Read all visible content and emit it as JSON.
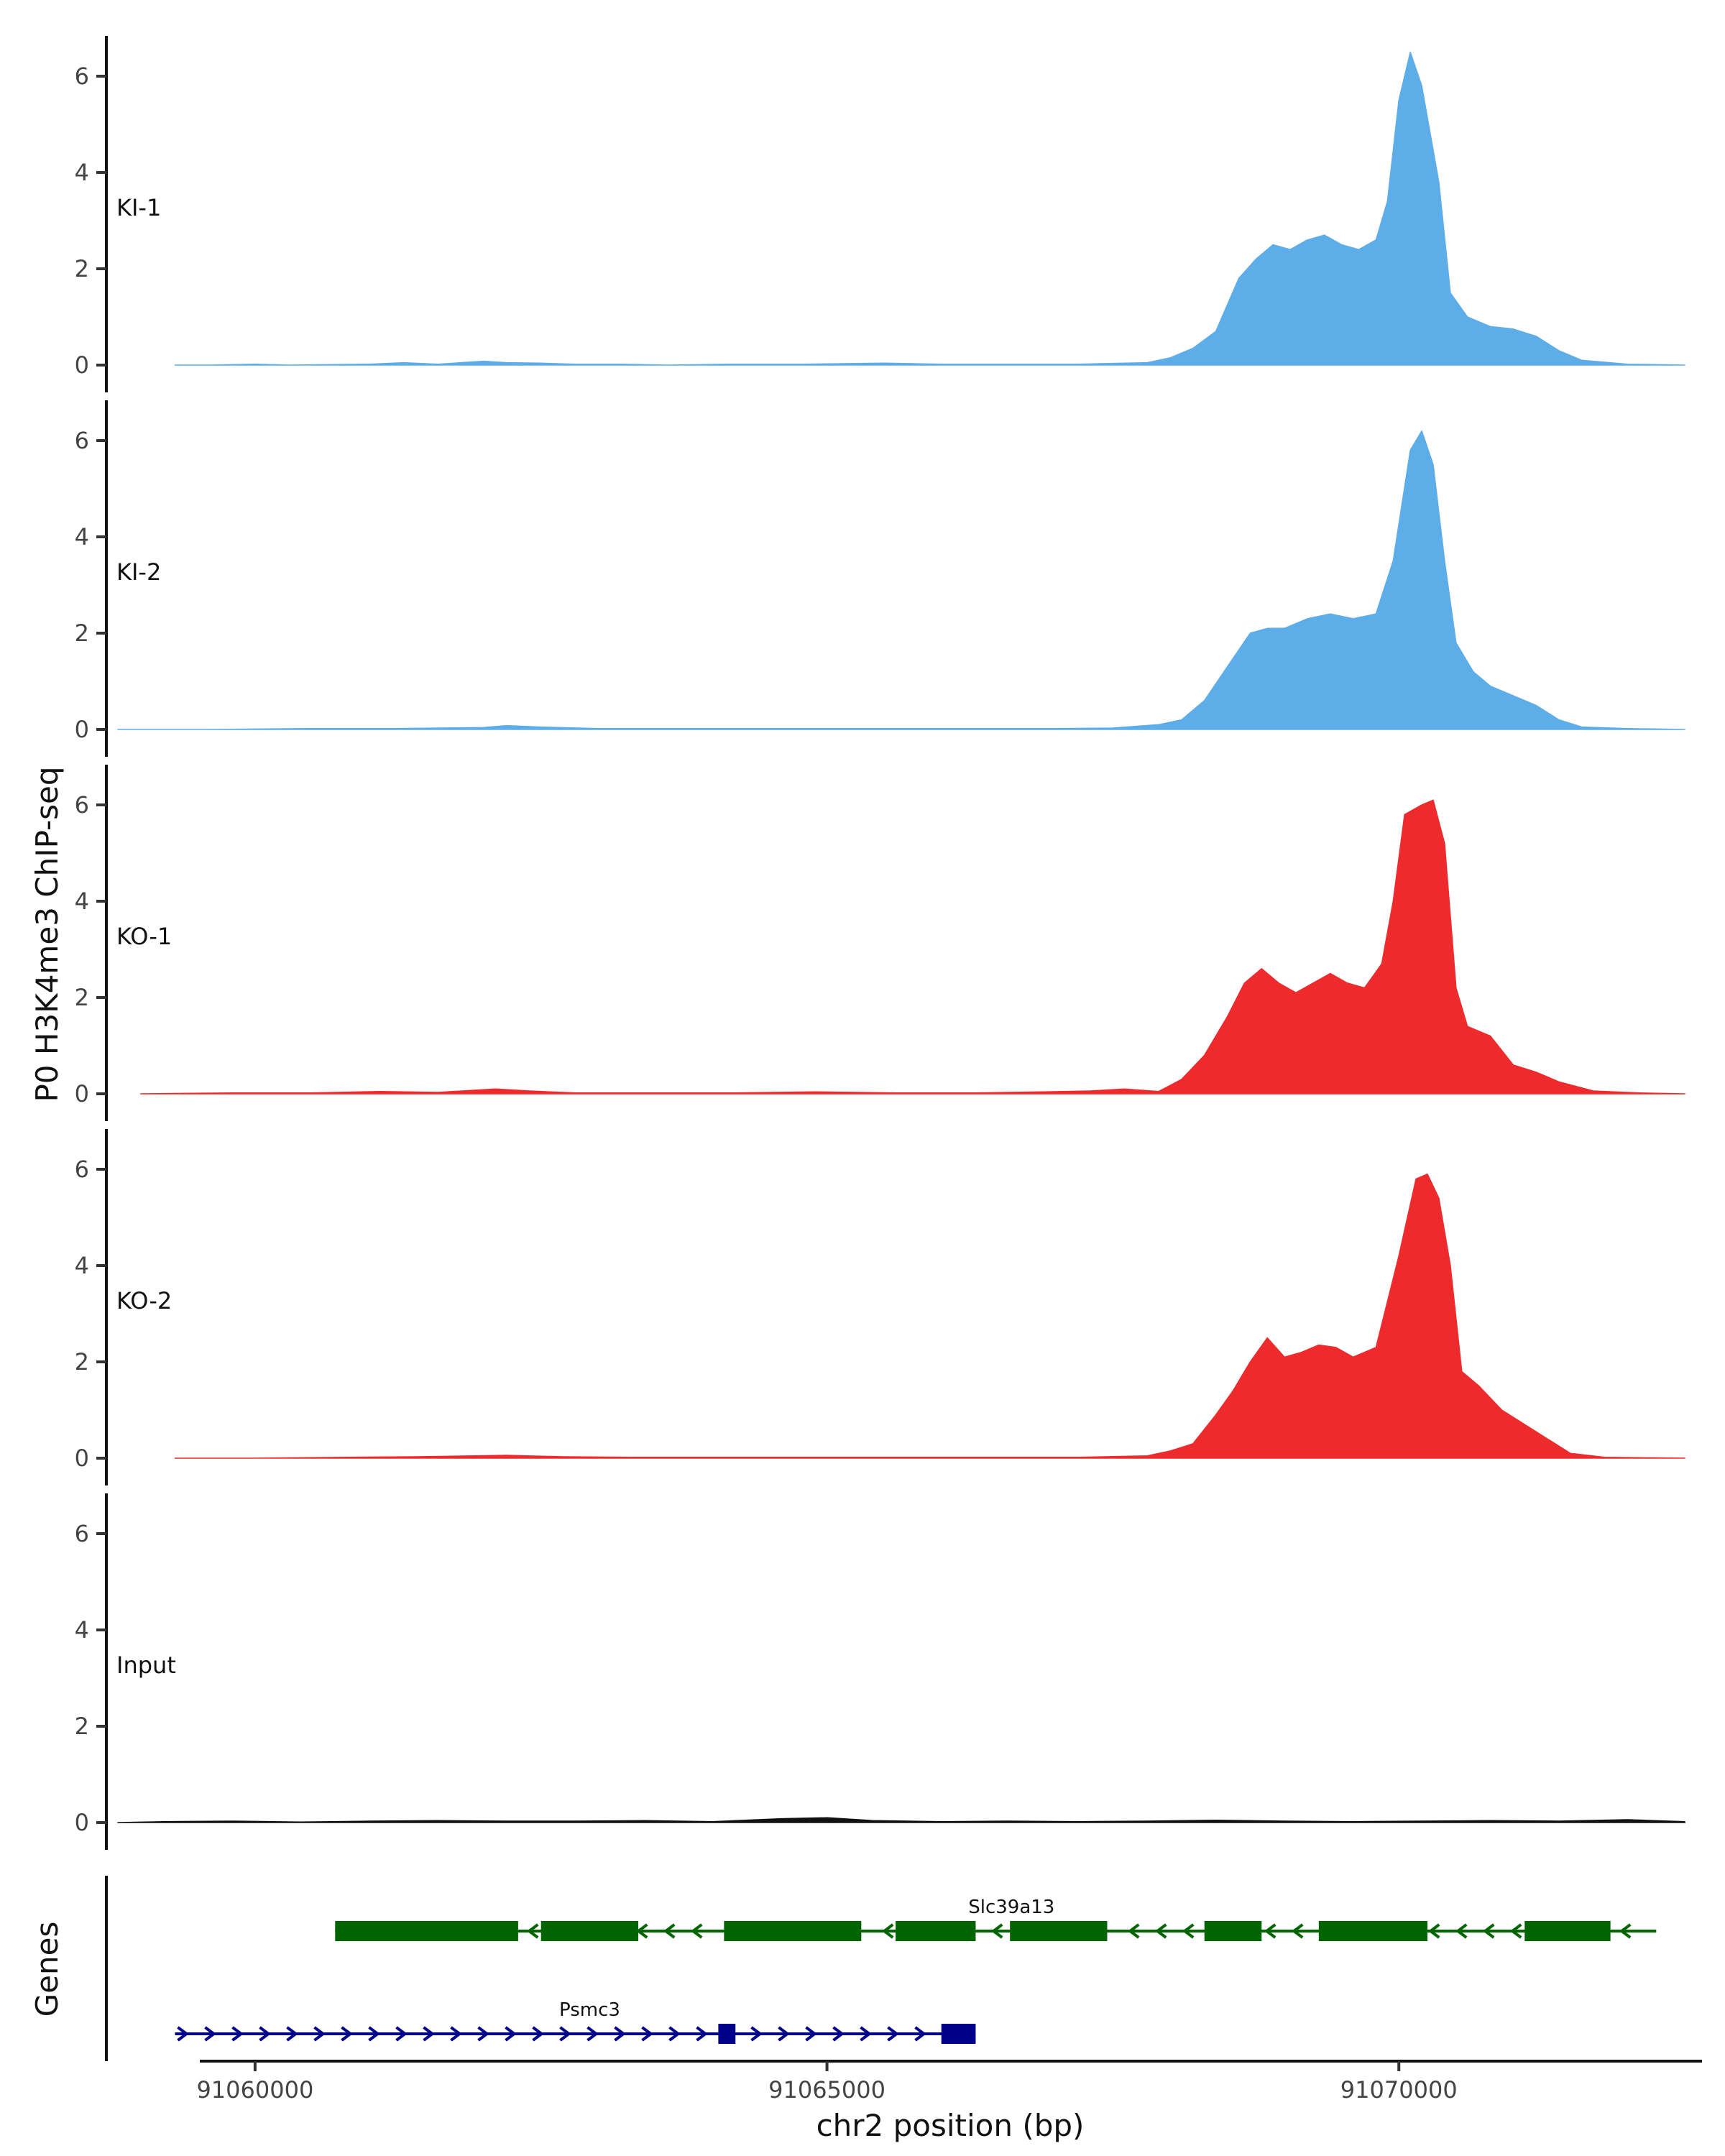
{
  "chart_data": {
    "type": "area",
    "ylabel": "P0 H3K4me3 ChIP-seq",
    "xlabel": "chr2 position (bp)",
    "genes_label": "Genes",
    "xlim": [
      91058700,
      91072600
    ],
    "ylim": [
      0,
      6.8
    ],
    "y_ticks": [
      0,
      2,
      4,
      6
    ],
    "x_ticks": [
      91060000,
      91065000,
      91070000
    ],
    "x_tick_labels": [
      "91060000",
      "91065000",
      "91070000"
    ],
    "tracks": [
      {
        "label": "KI-1",
        "color": "#5dade9",
        "points": [
          [
            91059300,
            0
          ],
          [
            91059600,
            0
          ],
          [
            91060000,
            0.02
          ],
          [
            91060300,
            0
          ],
          [
            91061000,
            0.02
          ],
          [
            91061300,
            0.05
          ],
          [
            91061600,
            0.02
          ],
          [
            91062000,
            0.08
          ],
          [
            91062200,
            0.05
          ],
          [
            91062500,
            0.04
          ],
          [
            91062800,
            0.02
          ],
          [
            91063200,
            0.02
          ],
          [
            91063600,
            0
          ],
          [
            91064200,
            0.02
          ],
          [
            91064800,
            0.02
          ],
          [
            91065500,
            0.04
          ],
          [
            91066000,
            0.02
          ],
          [
            91066600,
            0.02
          ],
          [
            91067200,
            0.02
          ],
          [
            91067800,
            0.05
          ],
          [
            91068000,
            0.15
          ],
          [
            91068200,
            0.35
          ],
          [
            91068400,
            0.7
          ],
          [
            91068600,
            1.8
          ],
          [
            91068750,
            2.2
          ],
          [
            91068900,
            2.5
          ],
          [
            91069050,
            2.4
          ],
          [
            91069200,
            2.6
          ],
          [
            91069350,
            2.7
          ],
          [
            91069500,
            2.5
          ],
          [
            91069650,
            2.4
          ],
          [
            91069800,
            2.6
          ],
          [
            91069900,
            3.4
          ],
          [
            91070000,
            5.5
          ],
          [
            91070100,
            6.5
          ],
          [
            91070200,
            5.8
          ],
          [
            91070350,
            3.8
          ],
          [
            91070450,
            1.5
          ],
          [
            91070600,
            1.0
          ],
          [
            91070800,
            0.8
          ],
          [
            91071000,
            0.75
          ],
          [
            91071200,
            0.6
          ],
          [
            91071400,
            0.3
          ],
          [
            91071600,
            0.1
          ],
          [
            91072000,
            0.02
          ],
          [
            91072500,
            0
          ]
        ]
      },
      {
        "label": "KI-2",
        "color": "#5dade9",
        "points": [
          [
            91058800,
            0
          ],
          [
            91059600,
            0
          ],
          [
            91060500,
            0.02
          ],
          [
            91061200,
            0.02
          ],
          [
            91062000,
            0.04
          ],
          [
            91062200,
            0.08
          ],
          [
            91062500,
            0.05
          ],
          [
            91063000,
            0.02
          ],
          [
            91063800,
            0.02
          ],
          [
            91064600,
            0.02
          ],
          [
            91065400,
            0.02
          ],
          [
            91066200,
            0.02
          ],
          [
            91067000,
            0.02
          ],
          [
            91067500,
            0.03
          ],
          [
            91067900,
            0.1
          ],
          [
            91068100,
            0.2
          ],
          [
            91068300,
            0.6
          ],
          [
            91068500,
            1.3
          ],
          [
            91068700,
            2.0
          ],
          [
            91068850,
            2.1
          ],
          [
            91069000,
            2.1
          ],
          [
            91069200,
            2.3
          ],
          [
            91069400,
            2.4
          ],
          [
            91069600,
            2.3
          ],
          [
            91069800,
            2.4
          ],
          [
            91069950,
            3.5
          ],
          [
            91070100,
            5.8
          ],
          [
            91070200,
            6.2
          ],
          [
            91070300,
            5.5
          ],
          [
            91070400,
            3.5
          ],
          [
            91070500,
            1.8
          ],
          [
            91070650,
            1.2
          ],
          [
            91070800,
            0.9
          ],
          [
            91071000,
            0.7
          ],
          [
            91071200,
            0.5
          ],
          [
            91071400,
            0.2
          ],
          [
            91071600,
            0.05
          ],
          [
            91072000,
            0.02
          ],
          [
            91072500,
            0
          ]
        ]
      },
      {
        "label": "KO-1",
        "color": "#ee2b2c",
        "points": [
          [
            91059000,
            0
          ],
          [
            91059800,
            0.02
          ],
          [
            91060500,
            0.02
          ],
          [
            91061100,
            0.05
          ],
          [
            91061600,
            0.03
          ],
          [
            91062100,
            0.1
          ],
          [
            91062400,
            0.06
          ],
          [
            91062800,
            0.02
          ],
          [
            91063500,
            0.02
          ],
          [
            91064200,
            0.02
          ],
          [
            91064900,
            0.04
          ],
          [
            91065600,
            0.02
          ],
          [
            91066300,
            0.02
          ],
          [
            91066900,
            0.04
          ],
          [
            91067300,
            0.06
          ],
          [
            91067600,
            0.1
          ],
          [
            91067900,
            0.05
          ],
          [
            91068100,
            0.3
          ],
          [
            91068300,
            0.8
          ],
          [
            91068500,
            1.6
          ],
          [
            91068650,
            2.3
          ],
          [
            91068800,
            2.6
          ],
          [
            91068950,
            2.3
          ],
          [
            91069100,
            2.1
          ],
          [
            91069250,
            2.3
          ],
          [
            91069400,
            2.5
          ],
          [
            91069550,
            2.3
          ],
          [
            91069700,
            2.2
          ],
          [
            91069850,
            2.7
          ],
          [
            91069950,
            4.0
          ],
          [
            91070050,
            5.8
          ],
          [
            91070200,
            6.0
          ],
          [
            91070300,
            6.1
          ],
          [
            91070400,
            5.2
          ],
          [
            91070500,
            2.2
          ],
          [
            91070600,
            1.4
          ],
          [
            91070800,
            1.2
          ],
          [
            91071000,
            0.6
          ],
          [
            91071200,
            0.45
          ],
          [
            91071400,
            0.25
          ],
          [
            91071700,
            0.06
          ],
          [
            91072100,
            0.02
          ],
          [
            91072500,
            0
          ]
        ]
      },
      {
        "label": "KO-2",
        "color": "#ee2b2c",
        "points": [
          [
            91059300,
            0
          ],
          [
            91060000,
            0
          ],
          [
            91060800,
            0.02
          ],
          [
            91061400,
            0.03
          ],
          [
            91062200,
            0.06
          ],
          [
            91062700,
            0.03
          ],
          [
            91063300,
            0.02
          ],
          [
            91064100,
            0.02
          ],
          [
            91065000,
            0.02
          ],
          [
            91065800,
            0.02
          ],
          [
            91066500,
            0.02
          ],
          [
            91067200,
            0.02
          ],
          [
            91067800,
            0.05
          ],
          [
            91068000,
            0.15
          ],
          [
            91068200,
            0.3
          ],
          [
            91068400,
            0.9
          ],
          [
            91068550,
            1.4
          ],
          [
            91068700,
            2.0
          ],
          [
            91068850,
            2.5
          ],
          [
            91069000,
            2.1
          ],
          [
            91069150,
            2.2
          ],
          [
            91069300,
            2.35
          ],
          [
            91069450,
            2.3
          ],
          [
            91069600,
            2.1
          ],
          [
            91069800,
            2.3
          ],
          [
            91070000,
            4.2
          ],
          [
            91070150,
            5.8
          ],
          [
            91070250,
            5.9
          ],
          [
            91070350,
            5.4
          ],
          [
            91070450,
            4.0
          ],
          [
            91070550,
            1.8
          ],
          [
            91070700,
            1.5
          ],
          [
            91070900,
            1.0
          ],
          [
            91071100,
            0.7
          ],
          [
            91071300,
            0.4
          ],
          [
            91071500,
            0.1
          ],
          [
            91071800,
            0.02
          ],
          [
            91072500,
            0
          ]
        ]
      },
      {
        "label": "Input",
        "color": "#111111",
        "points": [
          [
            91058800,
            0
          ],
          [
            91059200,
            0.02
          ],
          [
            91059800,
            0.03
          ],
          [
            91060400,
            0.01
          ],
          [
            91061000,
            0.03
          ],
          [
            91061600,
            0.04
          ],
          [
            91062200,
            0.03
          ],
          [
            91062800,
            0.03
          ],
          [
            91063400,
            0.04
          ],
          [
            91064000,
            0.02
          ],
          [
            91064600,
            0.08
          ],
          [
            91065000,
            0.1
          ],
          [
            91065400,
            0.04
          ],
          [
            91066000,
            0.02
          ],
          [
            91066600,
            0.03
          ],
          [
            91067200,
            0.02
          ],
          [
            91067800,
            0.03
          ],
          [
            91068400,
            0.05
          ],
          [
            91069000,
            0.03
          ],
          [
            91069600,
            0.02
          ],
          [
            91070200,
            0.03
          ],
          [
            91070800,
            0.04
          ],
          [
            91071400,
            0.03
          ],
          [
            91072000,
            0.06
          ],
          [
            91072500,
            0.02
          ]
        ]
      }
    ],
    "genes": [
      {
        "name": "Slc39a13",
        "strand": "-",
        "color": "#006400",
        "start": 91060700,
        "end": 91072250,
        "exons": [
          [
            91060700,
            91062300
          ],
          [
            91062500,
            91063350
          ],
          [
            91064100,
            91065300
          ],
          [
            91065600,
            91066300
          ],
          [
            91066600,
            91067450
          ],
          [
            91068300,
            91068800
          ],
          [
            91069300,
            91070250
          ],
          [
            91071100,
            91071850
          ]
        ]
      },
      {
        "name": "Psmc3",
        "strand": "+",
        "color": "#00008b",
        "start": 91059300,
        "end": 91066300,
        "exons": [
          [
            91064050,
            91064200
          ],
          [
            91066000,
            91066300
          ]
        ]
      }
    ]
  }
}
